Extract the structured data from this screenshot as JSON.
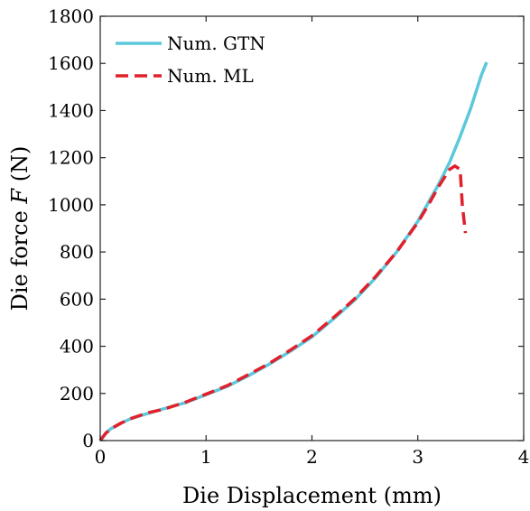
{
  "chart_data": {
    "type": "line",
    "xlabel": "Die Displacement (mm)",
    "ylabel_prefix": "Die force ",
    "ylabel_var": "F",
    "ylabel_unit": " (N)",
    "xlim": [
      0,
      4
    ],
    "ylim": [
      0,
      1800
    ],
    "xticks": [
      0,
      1,
      2,
      3,
      4
    ],
    "yticks": [
      0,
      200,
      400,
      600,
      800,
      1000,
      1200,
      1400,
      1600,
      1800
    ],
    "grid": false,
    "legend_position": "top-left",
    "series": [
      {
        "name": "Num. GTN",
        "color": "#5bc8dc",
        "style": "solid",
        "x": [
          0,
          0.05,
          0.1,
          0.2,
          0.3,
          0.45,
          0.6,
          0.8,
          1.0,
          1.2,
          1.4,
          1.6,
          1.8,
          2.0,
          2.2,
          2.4,
          2.6,
          2.8,
          3.0,
          3.1,
          3.2,
          3.3,
          3.4,
          3.5,
          3.6,
          3.65
        ],
        "y": [
          0,
          30,
          50,
          75,
          95,
          115,
          135,
          160,
          195,
          230,
          275,
          325,
          380,
          440,
          515,
          595,
          690,
          800,
          930,
          1010,
          1090,
          1180,
          1290,
          1410,
          1550,
          1605
        ]
      },
      {
        "name": "Num. ML",
        "color": "#e0202a",
        "style": "dashed",
        "x": [
          0,
          0.05,
          0.1,
          0.2,
          0.3,
          0.45,
          0.6,
          0.8,
          1.0,
          1.2,
          1.4,
          1.6,
          1.8,
          2.0,
          2.2,
          2.4,
          2.6,
          2.8,
          3.0,
          3.1,
          3.2,
          3.3,
          3.35,
          3.4,
          3.42,
          3.45
        ],
        "y": [
          0,
          30,
          50,
          75,
          95,
          118,
          133,
          162,
          197,
          233,
          280,
          328,
          385,
          445,
          520,
          600,
          695,
          800,
          925,
          1000,
          1080,
          1150,
          1165,
          1150,
          1000,
          880
        ]
      }
    ]
  }
}
